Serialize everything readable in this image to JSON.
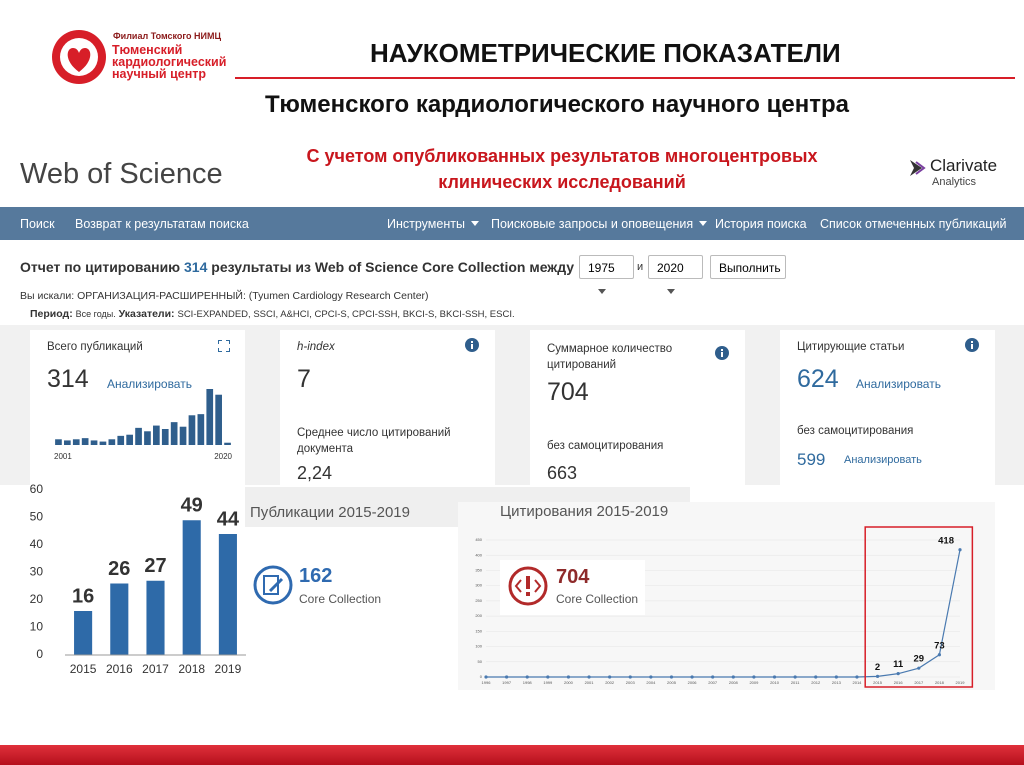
{
  "header": {
    "branch": "Филиал Томского НИМЦ",
    "org_lines": [
      "Тюменский",
      "кардиологический",
      "научный центр"
    ],
    "title": "НАУКОМЕТРИЧЕСКИЕ ПОКАЗАТЕЛИ",
    "subtitle": "Тюменского кардиологического научного центра",
    "note_lines": [
      "С учетом опубликованных результатов многоцентровых",
      "клинических исследований"
    ]
  },
  "wos": {
    "logo": "Web of Science",
    "vendor": "Clarivate",
    "vendor_sub": "Analytics"
  },
  "nav": {
    "left": [
      "Поиск",
      "Возврат к результатам поиска"
    ],
    "right": [
      "Инструменты",
      "Поисковые запросы и оповещения",
      "История поиска",
      "Список отмеченных публикаций"
    ]
  },
  "report": {
    "prefix": "Отчет по цитированию",
    "count": 314,
    "suffix": "результаты из Web of Science Core Collection между",
    "from": "1975",
    "and": "и",
    "to": "2020",
    "button": "Выполнить",
    "searched_label": "Вы искали:",
    "searched_field": "ОРГАНИЗАЦИЯ-РАСШИРЕННЫЙ:",
    "searched_value": "(Tyumen Cardiology Research Center)",
    "period_label": "Период:",
    "period_value": "Все годы.",
    "index_label": "Указатели:",
    "index_value": "SCI-EXPANDED, SSCI, A&HCI, CPCI-S, CPCI-SSH, BKCI-S, BKCI-SSH, ESCI."
  },
  "cards": [
    {
      "label": "Всего публикаций",
      "value": 314,
      "link": "Анализировать"
    },
    {
      "label": "h-index",
      "value": 7,
      "sub_label": "Среднее число цитирований документа",
      "sub_value": "2,24"
    },
    {
      "label": "Суммарное количество цитирований",
      "value": 704,
      "sub_label": "без самоцитирования",
      "sub_value": 663
    },
    {
      "label": "Цитирующие статьи",
      "value": 624,
      "link": "Анализировать",
      "sub_label": "без самоцитирования",
      "sub_value": 599,
      "sub_link": "Анализировать"
    }
  ],
  "summary": {
    "publications": {
      "title": "Публикации 2015-2019",
      "count": 162,
      "source": "Core Collection"
    },
    "citations": {
      "count": 704,
      "source": "Core Collection"
    }
  },
  "chart_data": [
    {
      "type": "bar",
      "categories": [
        "2001",
        null,
        null,
        null,
        null,
        null,
        null,
        null,
        null,
        null,
        null,
        null,
        null,
        null,
        null,
        null,
        null,
        null,
        null,
        "2020"
      ],
      "values": [
        5,
        4,
        5,
        6,
        4,
        3,
        5,
        8,
        9,
        15,
        12,
        17,
        14,
        20,
        16,
        26,
        27,
        49,
        44,
        2
      ],
      "color": "#2f5e8c"
    },
    {
      "type": "bar",
      "categories": [
        "2015",
        "2016",
        "2017",
        "2018",
        "2019"
      ],
      "values": [
        16,
        26,
        27,
        49,
        44
      ],
      "color": "#2e6aa8",
      "ylim": [
        0,
        60
      ],
      "yticks": [
        0,
        10,
        20,
        30,
        40,
        50,
        60
      ],
      "data_labels": true
    },
    {
      "type": "line",
      "title": "Цитирования 2015-2019",
      "categories": [
        "1996",
        "1997",
        "1998",
        "1999",
        "2000",
        "2001",
        "2002",
        "2003",
        "2004",
        "2005",
        "2006",
        "2007",
        "2008",
        "2009",
        "2010",
        "2011",
        "2012",
        "2013",
        "2014",
        "2015",
        "2016",
        "2017",
        "2018",
        "2019"
      ],
      "values": [
        0,
        0,
        0,
        0,
        0,
        0,
        0,
        0,
        0,
        0,
        0,
        0,
        0,
        0,
        0,
        0,
        0,
        0,
        0,
        2,
        11,
        29,
        73,
        418
      ],
      "value_labels": [
        null,
        null,
        null,
        null,
        null,
        null,
        null,
        null,
        null,
        null,
        null,
        null,
        null,
        null,
        null,
        null,
        null,
        null,
        null,
        "2",
        "11",
        "29",
        "73",
        "418"
      ],
      "color": "#4a7ab0",
      "ylim": [
        0,
        450
      ],
      "yticks": [
        0,
        50,
        100,
        150,
        200,
        250,
        300,
        350,
        400,
        450
      ],
      "grid": true
    }
  ]
}
